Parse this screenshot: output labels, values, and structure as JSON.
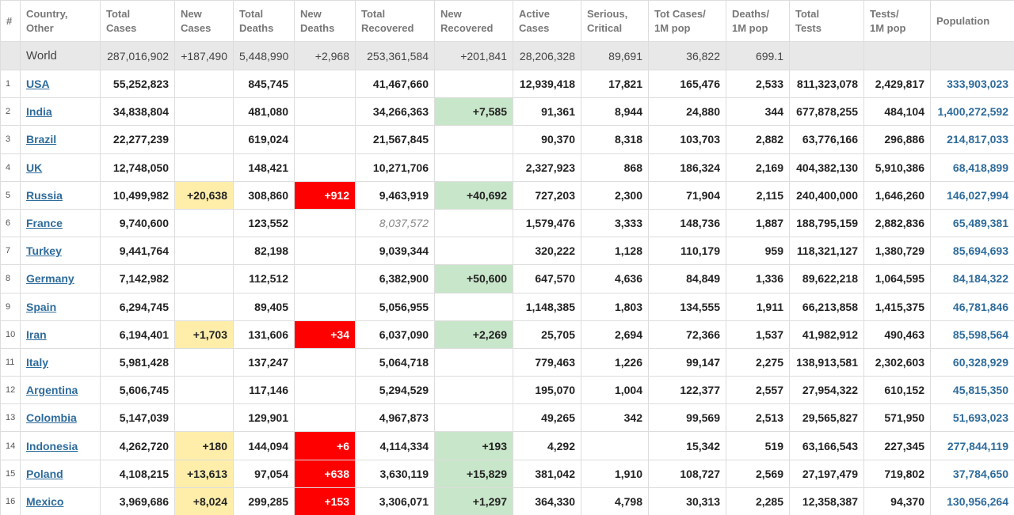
{
  "table": {
    "headers": [
      [
        "#"
      ],
      [
        "Country,",
        "Other"
      ],
      [
        "Total",
        "Cases"
      ],
      [
        "New",
        "Cases"
      ],
      [
        "Total",
        "Deaths"
      ],
      [
        "New",
        "Deaths"
      ],
      [
        "Total",
        "Recovered"
      ],
      [
        "New",
        "Recovered"
      ],
      [
        "Active",
        "Cases"
      ],
      [
        "Serious,",
        "Critical"
      ],
      [
        "Tot Cases/",
        "1M pop"
      ],
      [
        "Deaths/",
        "1M pop"
      ],
      [
        "Total",
        "Tests"
      ],
      [
        "Tests/",
        "1M pop"
      ],
      [
        "Population"
      ]
    ],
    "world": [
      null,
      "World",
      "287,016,902",
      "+187,490",
      "5,448,990",
      "+2,968",
      "253,361,584",
      "+201,841",
      "28,206,328",
      "89,691",
      "36,822",
      "699.1",
      null,
      null,
      null
    ],
    "rows": [
      [
        "1",
        "USA",
        "55,252,823",
        null,
        "845,745",
        null,
        "41,467,660",
        null,
        "12,939,418",
        "17,821",
        "165,476",
        "2,533",
        "811,323,078",
        "2,429,817",
        "333,903,023"
      ],
      [
        "2",
        "India",
        "34,838,804",
        null,
        "481,080",
        null,
        "34,266,363",
        "+7,585",
        "91,361",
        "8,944",
        "24,880",
        "344",
        "677,878,255",
        "484,104",
        "1,400,272,592"
      ],
      [
        "3",
        "Brazil",
        "22,277,239",
        null,
        "619,024",
        null,
        "21,567,845",
        null,
        "90,370",
        "8,318",
        "103,703",
        "2,882",
        "63,776,166",
        "296,886",
        "214,817,033"
      ],
      [
        "4",
        "UK",
        "12,748,050",
        null,
        "148,421",
        null,
        "10,271,706",
        null,
        "2,327,923",
        "868",
        "186,324",
        "2,169",
        "404,382,130",
        "5,910,386",
        "68,418,899"
      ],
      [
        "5",
        "Russia",
        "10,499,982",
        "+20,638",
        "308,860",
        "+912",
        "9,463,919",
        "+40,692",
        "727,203",
        "2,300",
        "71,904",
        "2,115",
        "240,400,000",
        "1,646,260",
        "146,027,994"
      ],
      [
        "6",
        "France",
        "9,740,600",
        null,
        "123,552",
        null,
        "8,037,572",
        null,
        "1,579,476",
        "3,333",
        "148,736",
        "1,887",
        "188,795,159",
        "2,882,836",
        "65,489,381"
      ],
      [
        "7",
        "Turkey",
        "9,441,764",
        null,
        "82,198",
        null,
        "9,039,344",
        null,
        "320,222",
        "1,128",
        "110,179",
        "959",
        "118,321,127",
        "1,380,729",
        "85,694,693"
      ],
      [
        "8",
        "Germany",
        "7,142,982",
        null,
        "112,512",
        null,
        "6,382,900",
        "+50,600",
        "647,570",
        "4,636",
        "84,849",
        "1,336",
        "89,622,218",
        "1,064,595",
        "84,184,322"
      ],
      [
        "9",
        "Spain",
        "6,294,745",
        null,
        "89,405",
        null,
        "5,056,955",
        null,
        "1,148,385",
        "1,803",
        "134,555",
        "1,911",
        "66,213,858",
        "1,415,375",
        "46,781,846"
      ],
      [
        "10",
        "Iran",
        "6,194,401",
        "+1,703",
        "131,606",
        "+34",
        "6,037,090",
        "+2,269",
        "25,705",
        "2,694",
        "72,366",
        "1,537",
        "41,982,912",
        "490,463",
        "85,598,564"
      ],
      [
        "11",
        "Italy",
        "5,981,428",
        null,
        "137,247",
        null,
        "5,064,718",
        null,
        "779,463",
        "1,226",
        "99,147",
        "2,275",
        "138,913,581",
        "2,302,603",
        "60,328,929"
      ],
      [
        "12",
        "Argentina",
        "5,606,745",
        null,
        "117,146",
        null,
        "5,294,529",
        null,
        "195,070",
        "1,004",
        "122,377",
        "2,557",
        "27,954,322",
        "610,152",
        "45,815,350"
      ],
      [
        "13",
        "Colombia",
        "5,147,039",
        null,
        "129,901",
        null,
        "4,967,873",
        null,
        "49,265",
        "342",
        "99,569",
        "2,513",
        "29,565,827",
        "571,950",
        "51,693,023"
      ],
      [
        "14",
        "Indonesia",
        "4,262,720",
        "+180",
        "144,094",
        "+6",
        "4,114,334",
        "+193",
        "4,292",
        null,
        "15,342",
        "519",
        "63,166,543",
        "227,345",
        "277,844,119"
      ],
      [
        "15",
        "Poland",
        "4,108,215",
        "+13,613",
        "97,054",
        "+638",
        "3,630,119",
        "+15,829",
        "381,042",
        "1,910",
        "108,727",
        "2,569",
        "27,197,479",
        "719,802",
        "37,784,650"
      ],
      [
        "16",
        "Mexico",
        "3,969,686",
        "+8,024",
        "299,285",
        "+153",
        "3,306,071",
        "+1,297",
        "364,330",
        "4,798",
        "30,313",
        "2,285",
        "12,358,387",
        "94,370",
        "130,956,264"
      ]
    ]
  }
}
